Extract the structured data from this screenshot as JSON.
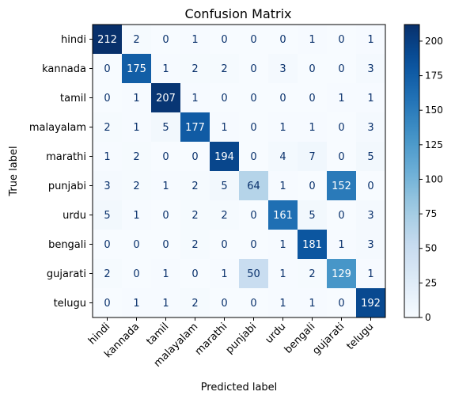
{
  "chart_data": {
    "type": "heatmap",
    "title": "Confusion Matrix",
    "xlabel": "Predicted label",
    "ylabel": "True label",
    "x_categories": [
      "hindi",
      "kannada",
      "tamil",
      "malayalam",
      "marathi",
      "punjabi",
      "urdu",
      "bengali",
      "gujarati",
      "telugu"
    ],
    "y_categories": [
      "hindi",
      "kannada",
      "tamil",
      "malayalam",
      "marathi",
      "punjabi",
      "urdu",
      "bengali",
      "gujarati",
      "telugu"
    ],
    "values": [
      [
        212,
        2,
        0,
        1,
        0,
        0,
        0,
        1,
        0,
        1
      ],
      [
        0,
        175,
        1,
        2,
        2,
        0,
        3,
        0,
        0,
        3
      ],
      [
        0,
        1,
        207,
        1,
        0,
        0,
        0,
        0,
        1,
        1
      ],
      [
        2,
        1,
        5,
        177,
        1,
        0,
        1,
        1,
        0,
        3
      ],
      [
        1,
        2,
        0,
        0,
        194,
        0,
        4,
        7,
        0,
        5
      ],
      [
        3,
        2,
        1,
        2,
        5,
        64,
        1,
        0,
        152,
        0
      ],
      [
        5,
        1,
        0,
        2,
        2,
        0,
        161,
        5,
        0,
        3
      ],
      [
        0,
        0,
        0,
        2,
        0,
        0,
        1,
        181,
        1,
        3
      ],
      [
        2,
        0,
        1,
        0,
        1,
        50,
        1,
        2,
        129,
        1
      ],
      [
        0,
        1,
        1,
        2,
        0,
        0,
        1,
        1,
        0,
        192
      ]
    ],
    "colormap": "Blues",
    "colorbar": {
      "range": [
        0,
        212
      ],
      "ticks": [
        0,
        25,
        50,
        75,
        100,
        125,
        150,
        175,
        200
      ]
    },
    "x_tick_rotation_deg": 45,
    "grid": false
  }
}
